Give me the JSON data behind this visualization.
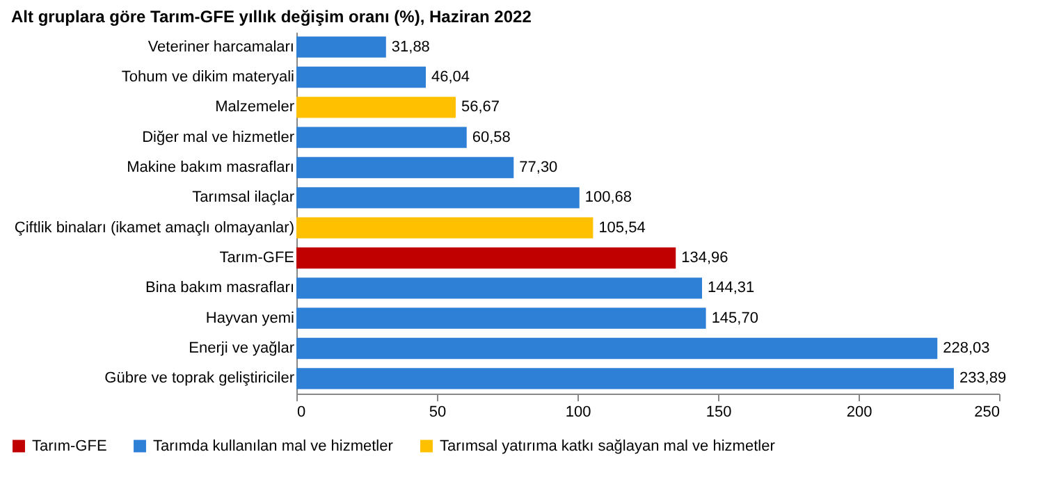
{
  "chart_data": {
    "type": "bar",
    "orientation": "horizontal",
    "title": "Alt gruplara göre Tarım-GFE yıllık değişim oranı (%), Haziran 2022",
    "categories": [
      "Veteriner harcamaları",
      "Tohum ve dikim materyali",
      "Malzemeler",
      "Diğer mal ve hizmetler",
      "Makine bakım masrafları",
      "Tarımsal ilaçlar",
      "Çiftlik binaları (ikamet amaçlı olmayanlar)",
      "Tarım-GFE",
      "Bina bakım masrafları",
      "Hayvan yemi",
      "Enerji ve yağlar",
      "Gübre ve toprak geliştiriciler"
    ],
    "series": [
      {
        "name": "Tarım-GFE",
        "color": "#c00000",
        "values": [
          null,
          null,
          null,
          null,
          null,
          null,
          null,
          134.96,
          null,
          null,
          null,
          null
        ],
        "value_labels": [
          null,
          null,
          null,
          null,
          null,
          null,
          null,
          "134,96",
          null,
          null,
          null,
          null
        ]
      },
      {
        "name": "Tarımda kullanılan mal ve hizmetler",
        "color": "#2e7fd6",
        "values": [
          31.88,
          46.04,
          null,
          60.58,
          77.3,
          100.68,
          null,
          null,
          144.31,
          145.7,
          228.03,
          233.89
        ],
        "value_labels": [
          "31,88",
          "46,04",
          null,
          "60,58",
          "77,30",
          "100,68",
          null,
          null,
          "144,31",
          "145,70",
          "228,03",
          "233,89"
        ]
      },
      {
        "name": "Tarımsal yatırıma katkı sağlayan mal ve hizmetler",
        "color": "#ffc000",
        "values": [
          null,
          null,
          56.67,
          null,
          null,
          null,
          105.54,
          null,
          null,
          null,
          null,
          null
        ],
        "value_labels": [
          null,
          null,
          "56,67",
          null,
          null,
          null,
          "105,54",
          null,
          null,
          null,
          null,
          null
        ]
      }
    ],
    "xlim": [
      0,
      250
    ],
    "xticks": [
      0,
      50,
      100,
      150,
      200,
      250
    ],
    "grid": false,
    "legend": "bottom"
  }
}
